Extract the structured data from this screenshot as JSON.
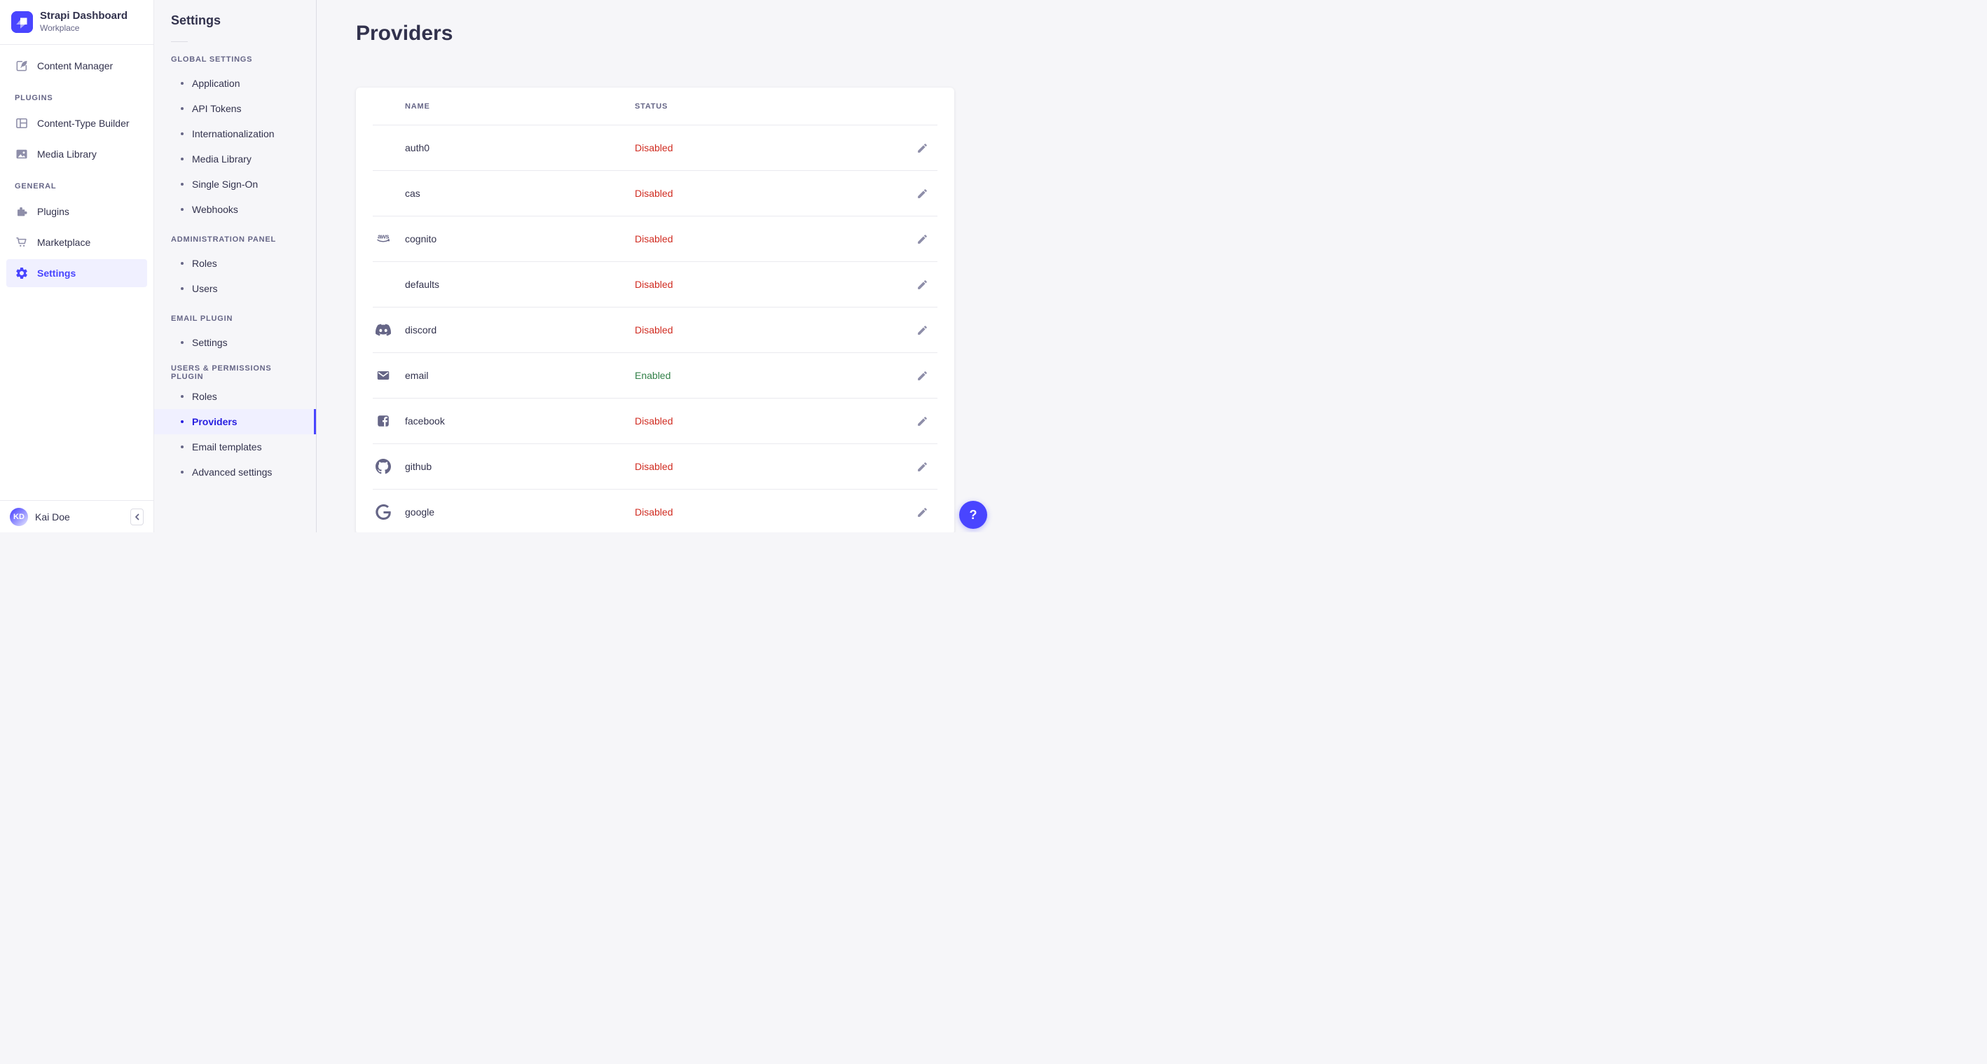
{
  "brand": {
    "title": "Strapi Dashboard",
    "subtitle": "Workplace"
  },
  "sidebar": {
    "top_items": [
      {
        "label": "Content Manager",
        "icon": "content-manager",
        "active": false
      }
    ],
    "sections": [
      {
        "header": "PLUGINS",
        "items": [
          {
            "label": "Content-Type Builder",
            "icon": "content-type-builder",
            "active": false
          },
          {
            "label": "Media Library",
            "icon": "media-library",
            "active": false
          }
        ]
      },
      {
        "header": "GENERAL",
        "items": [
          {
            "label": "Plugins",
            "icon": "plugins",
            "active": false
          },
          {
            "label": "Marketplace",
            "icon": "marketplace",
            "active": false
          },
          {
            "label": "Settings",
            "icon": "settings",
            "active": true
          }
        ]
      }
    ],
    "user": {
      "name": "Kai Doe",
      "initials": "KD"
    }
  },
  "subnav": {
    "title": "Settings",
    "sections": [
      {
        "header": "GLOBAL SETTINGS",
        "items": [
          {
            "label": "Application",
            "active": false
          },
          {
            "label": "API Tokens",
            "active": false
          },
          {
            "label": "Internationalization",
            "active": false
          },
          {
            "label": "Media Library",
            "active": false
          },
          {
            "label": "Single Sign-On",
            "active": false
          },
          {
            "label": "Webhooks",
            "active": false
          }
        ]
      },
      {
        "header": "ADMINISTRATION PANEL",
        "items": [
          {
            "label": "Roles",
            "active": false
          },
          {
            "label": "Users",
            "active": false
          }
        ]
      },
      {
        "header": "EMAIL PLUGIN",
        "items": [
          {
            "label": "Settings",
            "active": false
          }
        ]
      },
      {
        "header": "USERS & PERMISSIONS PLUGIN",
        "items": [
          {
            "label": "Roles",
            "active": false
          },
          {
            "label": "Providers",
            "active": true
          },
          {
            "label": "Email templates",
            "active": false
          },
          {
            "label": "Advanced settings",
            "active": false
          }
        ]
      }
    ]
  },
  "main": {
    "title": "Providers",
    "table": {
      "columns": [
        "NAME",
        "STATUS"
      ],
      "rows": [
        {
          "name": "auth0",
          "icon": null,
          "status": "Disabled"
        },
        {
          "name": "cas",
          "icon": null,
          "status": "Disabled"
        },
        {
          "name": "cognito",
          "icon": "aws",
          "status": "Disabled"
        },
        {
          "name": "defaults",
          "icon": null,
          "status": "Disabled"
        },
        {
          "name": "discord",
          "icon": "discord",
          "status": "Disabled"
        },
        {
          "name": "email",
          "icon": "email",
          "status": "Enabled"
        },
        {
          "name": "facebook",
          "icon": "facebook",
          "status": "Disabled"
        },
        {
          "name": "github",
          "icon": "github",
          "status": "Disabled"
        },
        {
          "name": "google",
          "icon": "google",
          "status": "Disabled"
        }
      ]
    }
  },
  "help": {
    "label": "?"
  },
  "colors": {
    "primary": "#4945ff",
    "primary_background": "#f0f0ff",
    "active_link": "#271fe0",
    "status_disabled": "#d02b20",
    "status_enabled": "#328048",
    "text": "#32324d",
    "text_secondary": "#666687"
  }
}
